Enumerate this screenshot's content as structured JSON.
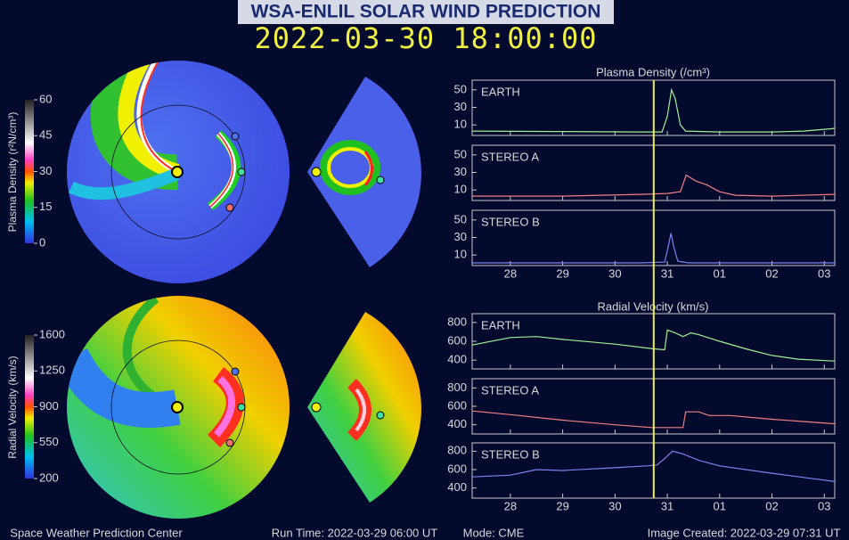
{
  "title": "WSA-ENLIL SOLAR WIND PREDICTION",
  "timestamp": "2022-03-30 18:00:00",
  "density_title": "Plasma Density (/cm³)",
  "velocity_title": "Radial Velocity (km/s)",
  "colorbars": [
    {
      "label": "Plasma Density (r²N/cm³)",
      "lim": [
        0,
        60
      ],
      "ticks": [
        0,
        15,
        30,
        45,
        60
      ]
    },
    {
      "label": "Radial Velocity (km/s)",
      "lim": [
        200,
        1600
      ],
      "ticks": [
        200,
        550,
        900,
        1250,
        1600
      ]
    }
  ],
  "time_axis": {
    "xlim": [
      27.27,
      34.2
    ],
    "xticks": [
      28,
      29,
      30,
      31,
      {
        "value": 32,
        "label": "01"
      },
      {
        "value": 33,
        "label": "02"
      },
      {
        "value": 34,
        "label": "03"
      }
    ],
    "now": 30.74
  },
  "chart_data": [
    {
      "type": "line",
      "title": "EARTH",
      "color": "#a0f090",
      "ylim": [
        -2,
        61
      ],
      "yticks": [
        10,
        30,
        50
      ],
      "x": [
        27.27,
        29,
        30.5,
        30.9,
        31.0,
        31.08,
        31.15,
        31.25,
        31.35,
        32,
        33,
        33.6,
        34.2
      ],
      "values": [
        3,
        2.5,
        2,
        2,
        20,
        50,
        40,
        10,
        3,
        2,
        2,
        3,
        6
      ]
    },
    {
      "type": "line",
      "title": "STEREO A",
      "color": "#f08080",
      "ylim": [
        -2,
        61
      ],
      "yticks": [
        10,
        30,
        50
      ],
      "x": [
        27.27,
        29,
        30.5,
        31.0,
        31.25,
        31.36,
        31.55,
        31.75,
        32.0,
        32.3,
        33,
        34.2
      ],
      "values": [
        3,
        3,
        5,
        6,
        8,
        27,
        20,
        16,
        8,
        4,
        3,
        5
      ]
    },
    {
      "type": "line",
      "title": "STEREO B",
      "color": "#8080f0",
      "ylim": [
        -2,
        61
      ],
      "yticks": [
        10,
        30,
        50
      ],
      "x": [
        27.27,
        29,
        30.5,
        30.95,
        31.02,
        31.07,
        31.12,
        31.2,
        31.4,
        32,
        33,
        34.2
      ],
      "values": [
        1,
        1,
        1,
        2,
        20,
        35,
        20,
        3,
        1,
        1,
        1,
        1
      ]
    },
    {
      "type": "line",
      "title": "EARTH",
      "color": "#a0f090",
      "ylim": [
        307,
        893
      ],
      "yticks": [
        400,
        600,
        800
      ],
      "x": [
        27.27,
        28,
        28.5,
        29,
        30,
        30.74,
        30.95,
        31.0,
        31.15,
        31.3,
        31.45,
        31.6,
        32,
        32.5,
        33,
        33.5,
        34.2
      ],
      "values": [
        560,
        640,
        650,
        620,
        570,
        520,
        510,
        720,
        690,
        650,
        690,
        670,
        600,
        520,
        450,
        410,
        390
      ]
    },
    {
      "type": "line",
      "title": "STEREO A",
      "color": "#f08080",
      "ylim": [
        300,
        900
      ],
      "yticks": [
        400,
        600,
        800
      ],
      "x": [
        27.27,
        28,
        29,
        30,
        30.7,
        31.3,
        31.35,
        31.6,
        31.8,
        32.2,
        33,
        34.2
      ],
      "values": [
        550,
        510,
        450,
        400,
        370,
        370,
        540,
        540,
        500,
        500,
        460,
        410
      ]
    },
    {
      "type": "line",
      "title": "STEREO B",
      "color": "#8080f0",
      "ylim": [
        290,
        890
      ],
      "yticks": [
        400,
        600,
        800
      ],
      "x": [
        27.27,
        28,
        28.5,
        29,
        30,
        30.6,
        30.8,
        30.95,
        31.1,
        31.3,
        31.6,
        32,
        33,
        34.2
      ],
      "values": [
        520,
        540,
        600,
        590,
        620,
        640,
        650,
        720,
        800,
        770,
        700,
        640,
        560,
        470
      ]
    }
  ],
  "footer": {
    "center": "Space Weather Prediction Center",
    "run_time": "Run Time: 2022-03-29 06:00 UT",
    "mode": "Mode: CME",
    "created": "Image Created: 2022-03-29 07:31 UT"
  }
}
